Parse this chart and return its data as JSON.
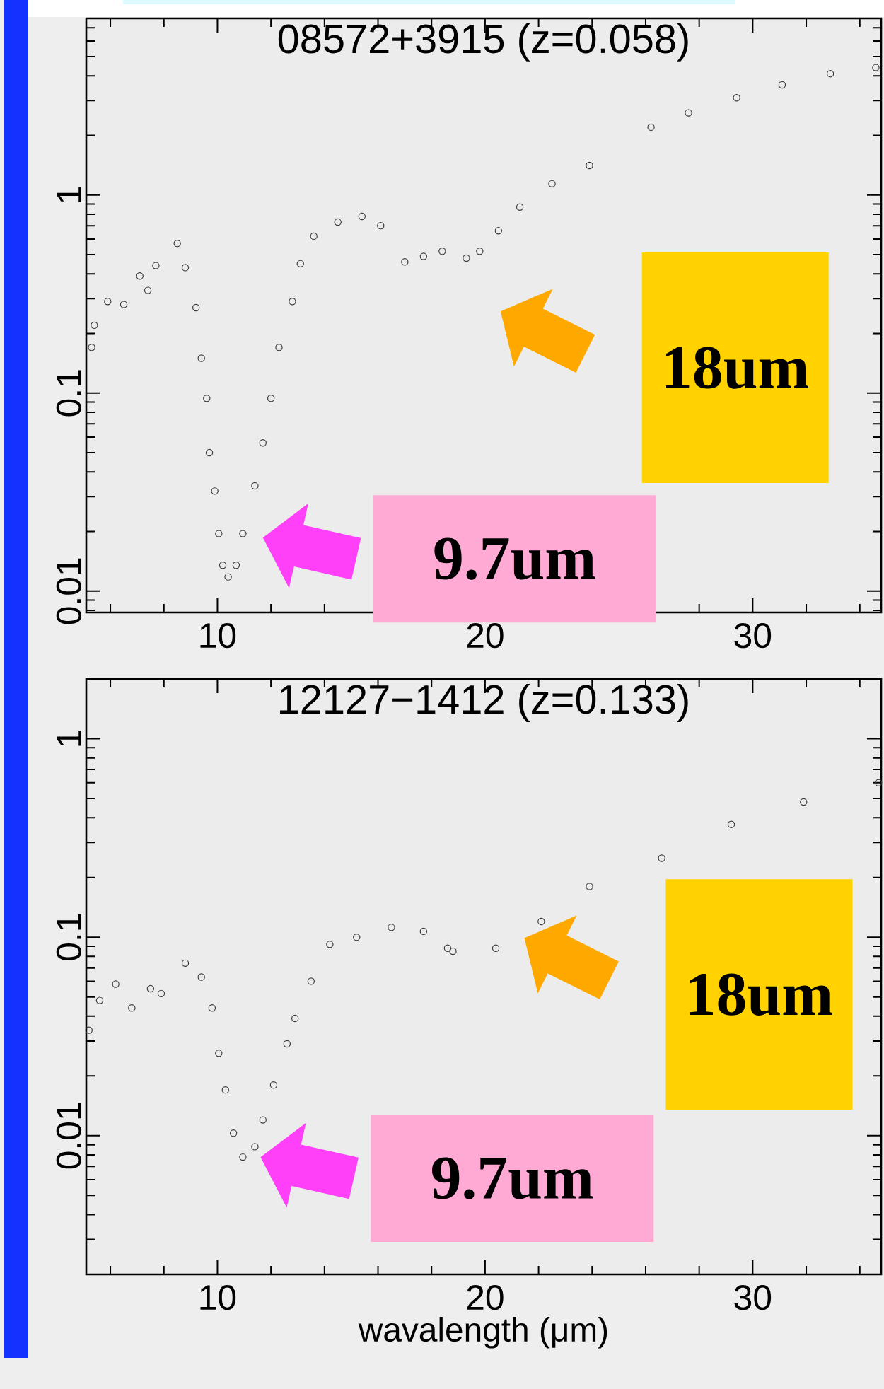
{
  "chart_data": [
    {
      "type": "scatter",
      "title": "08572+3915 (z=0.058)",
      "color": "#3a3a3a",
      "marker": "circle",
      "log": "y",
      "x": [
        5.3,
        5.4,
        5.9,
        6.5,
        7.1,
        7.4,
        7.7,
        8.5,
        8.8,
        9.2,
        9.4,
        9.6,
        9.7,
        9.9,
        10.05,
        10.2,
        10.4,
        10.7,
        10.95,
        11.4,
        11.7,
        12.0,
        12.3,
        12.8,
        13.1,
        13.6,
        14.5,
        15.4,
        16.1,
        17.0,
        17.7,
        18.4,
        19.3,
        19.8,
        20.5,
        21.3,
        22.5,
        23.9,
        26.2,
        27.6,
        29.4,
        31.1,
        32.9,
        34.6
      ],
      "values": [
        0.17,
        0.22,
        0.29,
        0.28,
        0.39,
        0.33,
        0.44,
        0.57,
        0.43,
        0.27,
        0.15,
        0.094,
        0.05,
        0.032,
        0.0195,
        0.0135,
        0.0118,
        0.0135,
        0.0195,
        0.034,
        0.056,
        0.094,
        0.17,
        0.29,
        0.45,
        0.62,
        0.73,
        0.78,
        0.7,
        0.46,
        0.49,
        0.52,
        0.48,
        0.52,
        0.66,
        0.87,
        1.14,
        1.41,
        2.2,
        2.6,
        3.1,
        3.6,
        4.1,
        4.4
      ],
      "xlim": [
        5.1,
        34.8
      ],
      "ylim": [
        0.0078,
        7.8
      ],
      "xticks": [
        10,
        20,
        30
      ],
      "yticks": [
        0.01,
        0.1,
        1
      ],
      "annotations": [
        "9.7um",
        "18um"
      ]
    },
    {
      "type": "scatter",
      "title": "12127−1412 (z=0.133)",
      "xlabel": "wavalength (μm)",
      "color": "#3a3a3a",
      "marker": "circle",
      "log": "y",
      "x": [
        5.2,
        5.6,
        6.2,
        6.8,
        7.5,
        7.9,
        8.8,
        9.4,
        9.8,
        10.05,
        10.3,
        10.6,
        10.95,
        11.4,
        11.7,
        12.1,
        12.6,
        12.9,
        13.5,
        14.2,
        15.2,
        16.5,
        17.7,
        18.6,
        18.8,
        20.4,
        22.1,
        23.9,
        26.6,
        29.2,
        31.9,
        34.7
      ],
      "values": [
        0.034,
        0.048,
        0.058,
        0.044,
        0.055,
        0.052,
        0.074,
        0.063,
        0.044,
        0.026,
        0.017,
        0.0103,
        0.0078,
        0.0088,
        0.012,
        0.018,
        0.029,
        0.039,
        0.06,
        0.092,
        0.1,
        0.112,
        0.107,
        0.088,
        0.085,
        0.088,
        0.12,
        0.18,
        0.25,
        0.37,
        0.48,
        0.6
      ],
      "xlim": [
        5.1,
        34.8
      ],
      "ylim": [
        0.002,
        2
      ],
      "xticks": [
        10,
        20,
        30
      ],
      "yticks": [
        0.01,
        0.1,
        1
      ],
      "annotations": [
        "9.7um",
        "18um"
      ]
    }
  ]
}
